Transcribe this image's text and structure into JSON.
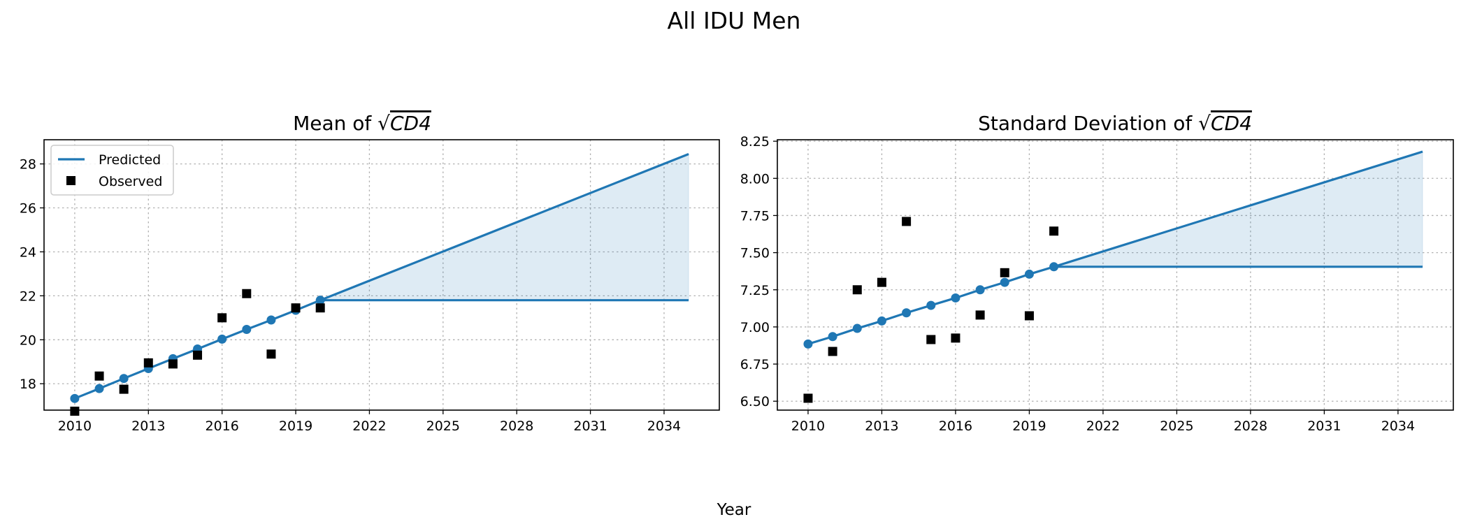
{
  "figure": {
    "suptitle": "All IDU Men",
    "xlabel": "Year"
  },
  "colors": {
    "predicted": "#1f77b4",
    "observed": "#000000",
    "band": "#1f77b4"
  },
  "legend": {
    "predicted": "Predicted",
    "observed": "Observed",
    "placement": "upper-left of first panel"
  },
  "chart_data": [
    {
      "type": "line",
      "title": "Mean of √CD4",
      "title_prefix": "Mean of ",
      "title_math": "CD4",
      "xlim": [
        2008.75,
        2036.25
      ],
      "ylim": [
        16.8,
        29.1
      ],
      "xticks": [
        2010,
        2013,
        2016,
        2019,
        2022,
        2025,
        2028,
        2031,
        2034
      ],
      "yticks": [
        18,
        20,
        22,
        24,
        26,
        28
      ],
      "ytick_labels": [
        "18",
        "20",
        "22",
        "24",
        "26",
        "28"
      ],
      "grid": true,
      "predicted_years": [
        2010,
        2011,
        2012,
        2013,
        2014,
        2015,
        2016,
        2017,
        2018,
        2019,
        2020
      ],
      "predicted_values": [
        17.33,
        17.78,
        18.24,
        18.69,
        19.14,
        19.58,
        20.03,
        20.47,
        20.9,
        21.34,
        21.8
      ],
      "observed_years": [
        2010,
        2011,
        2012,
        2013,
        2014,
        2015,
        2016,
        2017,
        2018,
        2019,
        2020
      ],
      "observed_values": [
        16.75,
        18.35,
        17.75,
        18.95,
        18.9,
        19.3,
        21.0,
        22.1,
        19.35,
        21.45,
        21.45
      ],
      "projection_years": [
        2020,
        2035
      ],
      "projection_upper": [
        21.8,
        28.45
      ],
      "projection_flat": [
        21.8,
        21.8
      ]
    },
    {
      "type": "line",
      "title": "Standard Deviation of √CD4",
      "title_prefix": "Standard Deviation of ",
      "title_math": "CD4",
      "xlim": [
        2008.75,
        2036.25
      ],
      "ylim": [
        6.44,
        8.26
      ],
      "xticks": [
        2010,
        2013,
        2016,
        2019,
        2022,
        2025,
        2028,
        2031,
        2034
      ],
      "yticks": [
        6.5,
        6.75,
        7.0,
        7.25,
        7.5,
        7.75,
        8.0,
        8.25
      ],
      "ytick_labels": [
        "6.50",
        "6.75",
        "7.00",
        "7.25",
        "7.50",
        "7.75",
        "8.00",
        "8.25"
      ],
      "grid": true,
      "predicted_years": [
        2010,
        2011,
        2012,
        2013,
        2014,
        2015,
        2016,
        2017,
        2018,
        2019,
        2020
      ],
      "predicted_values": [
        6.885,
        6.935,
        6.99,
        7.04,
        7.095,
        7.145,
        7.195,
        7.25,
        7.3,
        7.355,
        7.405
      ],
      "observed_years": [
        2010,
        2011,
        2012,
        2013,
        2014,
        2015,
        2016,
        2017,
        2018,
        2019,
        2020
      ],
      "observed_values": [
        6.52,
        6.835,
        7.25,
        7.3,
        7.71,
        6.915,
        6.925,
        7.08,
        7.365,
        7.075,
        7.645
      ],
      "projection_years": [
        2020,
        2035
      ],
      "projection_upper": [
        7.405,
        8.18
      ],
      "projection_flat": [
        7.405,
        7.405
      ]
    }
  ]
}
